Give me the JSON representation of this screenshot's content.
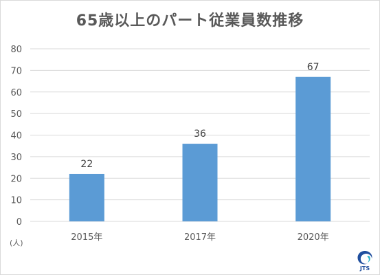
{
  "chart_data": {
    "type": "bar",
    "title": "65歳以上のパート従業員数推移",
    "unit_label": "(人)",
    "categories": [
      "2015年",
      "2017年",
      "2020年"
    ],
    "values": [
      22,
      36,
      67
    ],
    "data_labels": [
      "22",
      "36",
      "67"
    ],
    "ylim": [
      0,
      80
    ],
    "yticks": [
      "0",
      "10",
      "20",
      "30",
      "40",
      "50",
      "60",
      "70",
      "80"
    ],
    "grid": true,
    "bar_color": "#5b9bd5",
    "grid_color": "#d9d9d9",
    "legend": "none"
  },
  "logo": {
    "text": "JTS",
    "primary_color": "#1f4e9e",
    "accent_color": "#2ab3c8"
  }
}
